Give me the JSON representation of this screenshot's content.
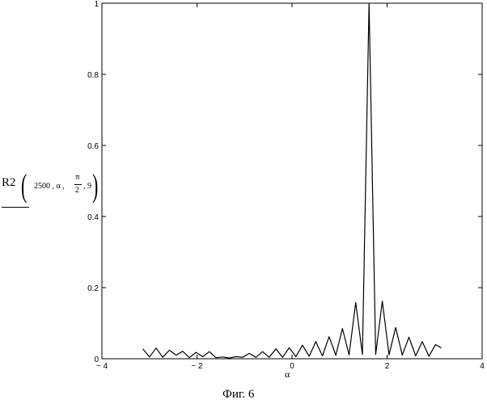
{
  "chart_data": {
    "type": "line",
    "title": "",
    "ylabel": {
      "function": "R2",
      "args_before": "2500 , α ,",
      "numerator": "π",
      "denominator": "2",
      "args_after": ", 9"
    },
    "xlabel": "α",
    "xlim": [
      -4,
      4
    ],
    "ylim": [
      0,
      1
    ],
    "x_ticks": [
      -4,
      -2,
      0,
      2,
      4
    ],
    "x_tick_labels": [
      "− 4",
      "− 2",
      "0",
      "2",
      "4"
    ],
    "y_ticks": [
      0,
      0.2,
      0.4,
      0.6,
      0.8,
      1
    ],
    "y_tick_labels": [
      "0",
      "0.2",
      "0.4",
      "0.6",
      "0.8",
      "1"
    ],
    "grid": false,
    "legend": "none",
    "line_color": "#000000",
    "series": [
      {
        "x": [
          -3.14,
          -3.0,
          -2.86,
          -2.72,
          -2.58,
          -2.44,
          -2.3,
          -2.16,
          -2.02,
          -1.88,
          -1.74,
          -1.6,
          -1.46,
          -1.32,
          -1.18,
          -1.04,
          -0.9,
          -0.76,
          -0.62,
          -0.48,
          -0.34,
          -0.2,
          -0.06,
          0.08,
          0.22,
          0.36,
          0.5,
          0.64,
          0.78,
          0.92,
          1.06,
          1.2,
          1.34,
          1.48,
          1.62,
          1.76,
          1.9,
          2.04,
          2.18,
          2.32,
          2.46,
          2.6,
          2.74,
          2.88,
          3.02,
          3.14
        ],
        "y": [
          0.028,
          0.005,
          0.03,
          0.004,
          0.024,
          0.01,
          0.021,
          0.003,
          0.018,
          0.006,
          0.02,
          0.003,
          0.005,
          0.002,
          0.006,
          0.004,
          0.015,
          0.004,
          0.02,
          0.004,
          0.028,
          0.004,
          0.031,
          0.006,
          0.038,
          0.007,
          0.048,
          0.008,
          0.062,
          0.01,
          0.085,
          0.011,
          0.158,
          0.012,
          1.0,
          0.012,
          0.162,
          0.011,
          0.088,
          0.01,
          0.061,
          0.008,
          0.048,
          0.007,
          0.04,
          0.03
        ]
      }
    ]
  },
  "caption": "Фиг. 6"
}
